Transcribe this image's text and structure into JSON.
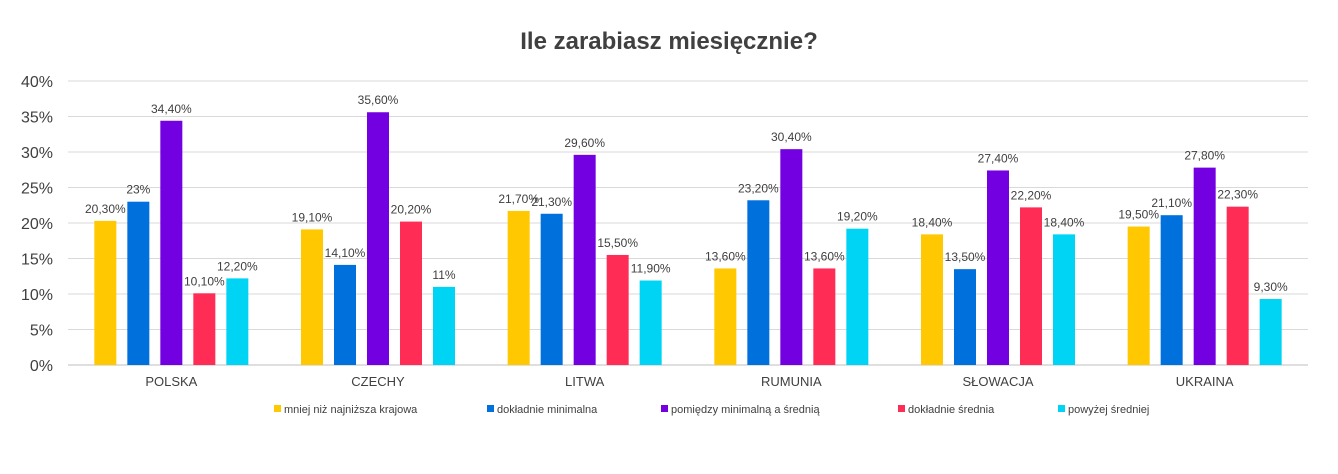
{
  "chart_data": {
    "type": "bar",
    "title": "Ile zarabiasz miesięcznie?",
    "xlabel": "",
    "ylabel": "",
    "ylim": [
      0,
      40
    ],
    "y_ticks": [
      "0%",
      "5%",
      "10%",
      "15%",
      "20%",
      "25%",
      "30%",
      "35%",
      "40%"
    ],
    "grid": true,
    "legend_position": "bottom",
    "categories": [
      "POLSKA",
      "CZECHY",
      "LITWA",
      "RUMUNIA",
      "SŁOWACJA",
      "UKRAINA"
    ],
    "series": [
      {
        "name": "mniej niż najniższa krajowa",
        "color": "#FFC800",
        "values": [
          20.3,
          19.1,
          21.7,
          13.6,
          18.4,
          19.5
        ],
        "labels": [
          "20,30%",
          "19,10%",
          "21,70%",
          "13,60%",
          "18,40%",
          "19,50%"
        ]
      },
      {
        "name": "dokładnie minimalna",
        "color": "#0070DD",
        "values": [
          23,
          14.1,
          21.3,
          23.2,
          13.5,
          21.1
        ],
        "labels": [
          "23%",
          "14,10%",
          "21,30%",
          "23,20%",
          "13,50%",
          "21,10%"
        ]
      },
      {
        "name": "pomiędzy minimalną a średnią",
        "color": "#7300E0",
        "values": [
          34.4,
          35.6,
          29.6,
          30.4,
          27.4,
          27.8
        ],
        "labels": [
          "34,40%",
          "35,60%",
          "29,60%",
          "30,40%",
          "27,40%",
          "27,80%"
        ]
      },
      {
        "name": "dokładnie średnia",
        "color": "#FF2D55",
        "values": [
          10.1,
          20.2,
          15.5,
          13.6,
          22.2,
          22.3
        ],
        "labels": [
          "10,10%",
          "20,20%",
          "15,50%",
          "13,60%",
          "22,20%",
          "22,30%"
        ]
      },
      {
        "name": "powyżej średniej",
        "color": "#00D4F5",
        "values": [
          12.2,
          11,
          11.9,
          19.2,
          18.4,
          9.3
        ],
        "labels": [
          "12,20%",
          "11%",
          "11,90%",
          "19,20%",
          "18,40%",
          "9,30%"
        ]
      }
    ]
  }
}
